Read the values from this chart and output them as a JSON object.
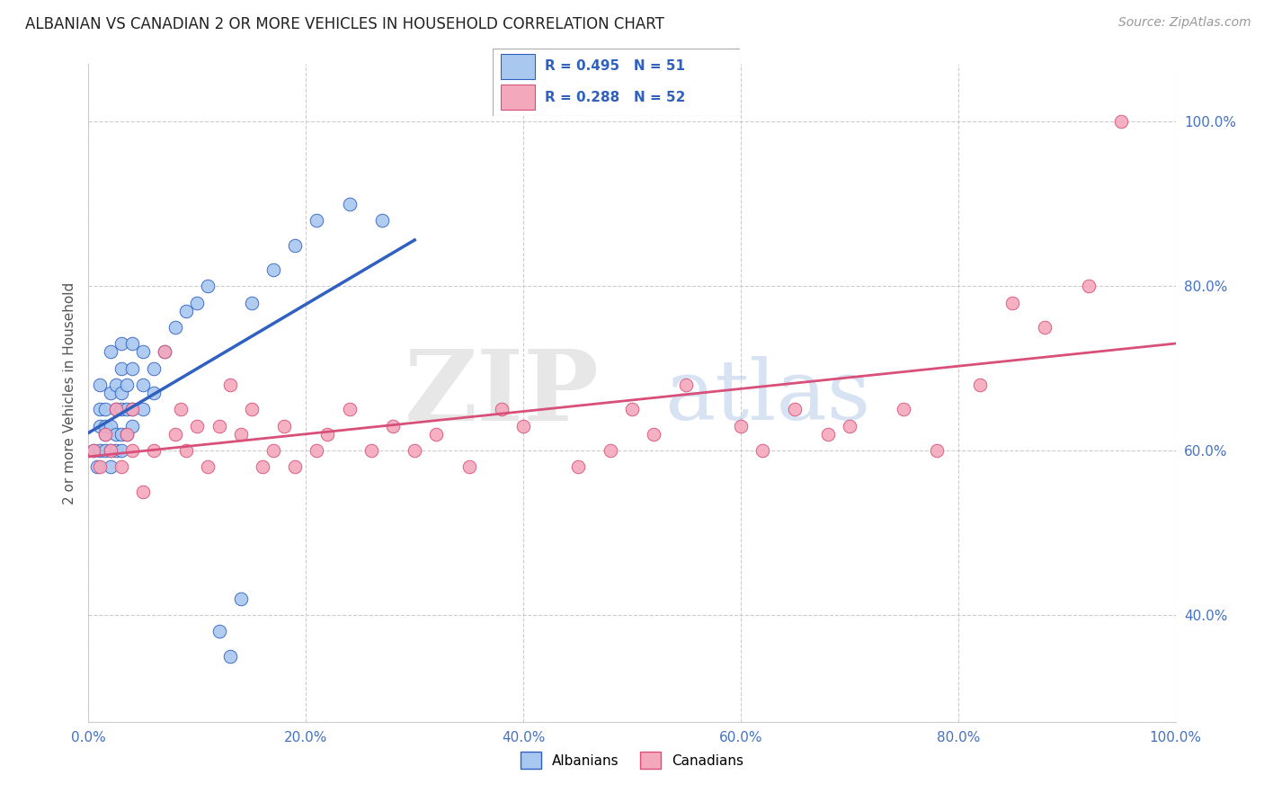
{
  "title": "ALBANIAN VS CANADIAN 2 OR MORE VEHICLES IN HOUSEHOLD CORRELATION CHART",
  "source": "Source: ZipAtlas.com",
  "ylabel": "2 or more Vehicles in Household",
  "xlim": [
    0.0,
    1.0
  ],
  "ylim": [
    0.27,
    1.07
  ],
  "xtick_labels": [
    "0.0%",
    "20.0%",
    "40.0%",
    "60.0%",
    "80.0%",
    "100.0%"
  ],
  "xtick_vals": [
    0.0,
    0.2,
    0.4,
    0.6,
    0.8,
    1.0
  ],
  "ytick_labels": [
    "40.0%",
    "60.0%",
    "80.0%",
    "100.0%"
  ],
  "ytick_vals": [
    0.4,
    0.6,
    0.8,
    1.0
  ],
  "albanian_R": 0.495,
  "albanian_N": 51,
  "canadian_R": 0.288,
  "canadian_N": 52,
  "legend_label_1": "Albanians",
  "legend_label_2": "Canadians",
  "color_albanian": "#A8C8F0",
  "color_canadian": "#F4A8BC",
  "line_color_albanian": "#3060C0",
  "line_color_canadian": "#D8507A",
  "watermark_zip": "ZIP",
  "watermark_atlas": "atlas",
  "title_fontsize": 12,
  "source_fontsize": 10,
  "albanian_x": [
    0.005,
    0.008,
    0.01,
    0.01,
    0.01,
    0.01,
    0.015,
    0.015,
    0.015,
    0.015,
    0.02,
    0.02,
    0.02,
    0.02,
    0.02,
    0.025,
    0.025,
    0.025,
    0.025,
    0.03,
    0.03,
    0.03,
    0.03,
    0.03,
    0.03,
    0.035,
    0.035,
    0.035,
    0.04,
    0.04,
    0.04,
    0.04,
    0.05,
    0.05,
    0.05,
    0.06,
    0.06,
    0.07,
    0.08,
    0.09,
    0.1,
    0.11,
    0.12,
    0.13,
    0.14,
    0.15,
    0.17,
    0.19,
    0.21,
    0.24,
    0.27
  ],
  "albanian_y": [
    0.6,
    0.58,
    0.6,
    0.63,
    0.65,
    0.68,
    0.6,
    0.62,
    0.63,
    0.65,
    0.58,
    0.6,
    0.63,
    0.67,
    0.72,
    0.6,
    0.62,
    0.65,
    0.68,
    0.6,
    0.62,
    0.65,
    0.67,
    0.7,
    0.73,
    0.62,
    0.65,
    0.68,
    0.63,
    0.65,
    0.7,
    0.73,
    0.65,
    0.68,
    0.72,
    0.67,
    0.7,
    0.72,
    0.75,
    0.77,
    0.78,
    0.8,
    0.38,
    0.35,
    0.42,
    0.78,
    0.82,
    0.85,
    0.88,
    0.9,
    0.88
  ],
  "canadian_x": [
    0.005,
    0.01,
    0.015,
    0.02,
    0.025,
    0.03,
    0.035,
    0.04,
    0.04,
    0.05,
    0.06,
    0.07,
    0.08,
    0.085,
    0.09,
    0.1,
    0.11,
    0.12,
    0.13,
    0.14,
    0.15,
    0.16,
    0.17,
    0.18,
    0.19,
    0.21,
    0.22,
    0.24,
    0.26,
    0.28,
    0.3,
    0.32,
    0.35,
    0.38,
    0.4,
    0.45,
    0.48,
    0.5,
    0.52,
    0.55,
    0.6,
    0.62,
    0.65,
    0.68,
    0.7,
    0.75,
    0.78,
    0.82,
    0.85,
    0.88,
    0.92,
    0.95
  ],
  "canadian_y": [
    0.6,
    0.58,
    0.62,
    0.6,
    0.65,
    0.58,
    0.62,
    0.6,
    0.65,
    0.55,
    0.6,
    0.72,
    0.62,
    0.65,
    0.6,
    0.63,
    0.58,
    0.63,
    0.68,
    0.62,
    0.65,
    0.58,
    0.6,
    0.63,
    0.58,
    0.6,
    0.62,
    0.65,
    0.6,
    0.63,
    0.6,
    0.62,
    0.58,
    0.65,
    0.63,
    0.58,
    0.6,
    0.65,
    0.62,
    0.68,
    0.63,
    0.6,
    0.65,
    0.62,
    0.63,
    0.65,
    0.6,
    0.68,
    0.78,
    0.75,
    0.8,
    1.0
  ]
}
